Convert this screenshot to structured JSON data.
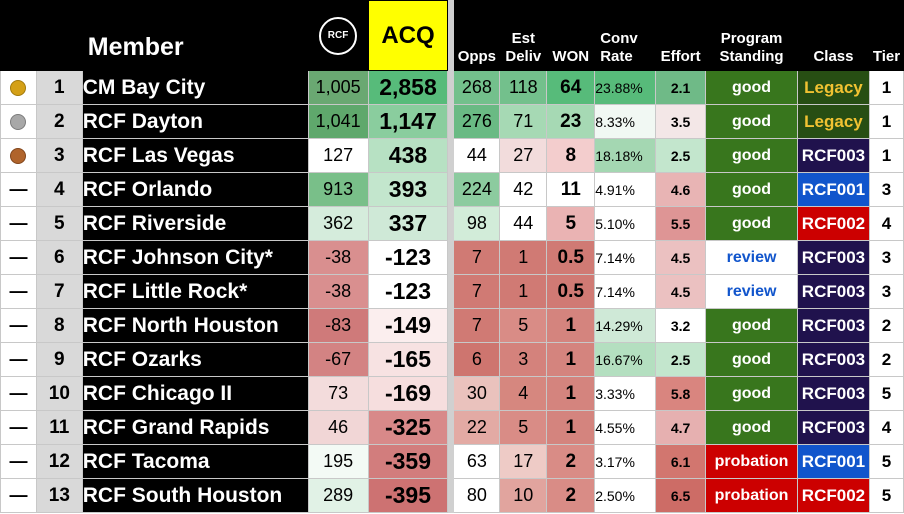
{
  "header": {
    "member": "Member",
    "logo_text": "RCF",
    "acq": "ACQ",
    "opps": "Opps",
    "est_deliv_1": "Est",
    "est_deliv_2": "Deliv",
    "won": "WON",
    "conv_rate_1": "Conv",
    "conv_rate_2": "Rate",
    "effort": "Effort",
    "standing_1": "Program",
    "standing_2": "Standing",
    "class": "Class",
    "tier": "Tier"
  },
  "colors": {
    "good_bg": "#38761d",
    "good_text": "#ffffff",
    "review_bg": "#ffffff",
    "review_text": "#1155cc",
    "probation_bg": "#cc0000",
    "probation_text": "#ffffff",
    "legacy_bg": "#274e13",
    "legacy_text": "#f1c232",
    "rcf003_bg": "#20124d",
    "rcf001_bg": "#1155cc",
    "rcf002_bg": "#cc0000"
  },
  "rows": [
    {
      "medal": "gold",
      "medal_icon": "gold-medal-icon",
      "dash": "",
      "rank": "1",
      "name": "CM Bay City",
      "score": "1,005",
      "acq": "2,858",
      "opps": "268",
      "est": "118",
      "won": "64",
      "conv": "23.88%",
      "effort": "2.1",
      "standing": "good",
      "class": "Legacy",
      "tier": "1",
      "bg": {
        "score": "#6aa872",
        "acq": "#57bb7a",
        "opps": "#73c08c",
        "est": "#73c08c",
        "won": "#57bb7a",
        "conv": "#57bb7a",
        "effort": "#6fba87"
      }
    },
    {
      "medal": "silver",
      "medal_icon": "silver-medal-icon",
      "dash": "",
      "rank": "2",
      "name": "RCF Dayton",
      "score": "1,041",
      "acq": "1,147",
      "opps": "276",
      "est": "71",
      "won": "23",
      "conv": "8.33%",
      "effort": "3.5",
      "standing": "good",
      "class": "Legacy",
      "tier": "1",
      "bg": {
        "score": "#5fa86c",
        "acq": "#8acd9e",
        "opps": "#6aba84",
        "est": "#a6d9b4",
        "won": "#a6d9b4",
        "conv": "#f1f8f3",
        "effort": "#f3e7e7"
      }
    },
    {
      "medal": "bronze",
      "medal_icon": "bronze-medal-icon",
      "dash": "",
      "rank": "3",
      "name": "RCF Las Vegas",
      "score": "127",
      "acq": "438",
      "opps": "44",
      "est": "27",
      "won": "8",
      "conv": "18.18%",
      "effort": "2.5",
      "standing": "good",
      "class": "RCF003",
      "tier": "1",
      "bg": {
        "score": "#ffffff",
        "acq": "#b7e1c3",
        "opps": "#ffffff",
        "est": "#f2dcdc",
        "won": "#f3cdcd",
        "conv": "#a4d7b2",
        "effort": "#c3e6cd"
      }
    },
    {
      "medal": "",
      "medal_icon": "",
      "dash": "—",
      "rank": "4",
      "name": "RCF Orlando",
      "score": "913",
      "acq": "393",
      "opps": "224",
      "est": "42",
      "won": "11",
      "conv": "4.91%",
      "effort": "4.6",
      "standing": "good",
      "class": "RCF001",
      "tier": "3",
      "bg": {
        "score": "#79bf89",
        "acq": "#c3e6cd",
        "opps": "#8ccb9f",
        "est": "#ffffff",
        "won": "#ffffff",
        "conv": "#ffffff",
        "effort": "#e8b4b4"
      }
    },
    {
      "medal": "",
      "medal_icon": "",
      "dash": "—",
      "rank": "5",
      "name": "RCF Riverside",
      "score": "362",
      "acq": "337",
      "opps": "98",
      "est": "44",
      "won": "5",
      "conv": "5.10%",
      "effort": "5.5",
      "standing": "good",
      "class": "RCF002",
      "tier": "4",
      "bg": {
        "score": "#d5ecdc",
        "acq": "#cfe9d7",
        "opps": "#d2ecd9",
        "est": "#ffffff",
        "won": "#eab3b3",
        "conv": "#ffffff",
        "effort": "#de9595"
      }
    },
    {
      "medal": "",
      "medal_icon": "",
      "dash": "—",
      "rank": "6",
      "name": "RCF Johnson City*",
      "score": "-38",
      "acq": "-123",
      "opps": "7",
      "est": "1",
      "won": "0.5",
      "conv": "7.14%",
      "effort": "4.5",
      "standing": "review",
      "class": "RCF003",
      "tier": "3",
      "bg": {
        "score": "#d98f8f",
        "acq": "#ffffff",
        "opps": "#d07a74",
        "est": "#d07a74",
        "won": "#d07a74",
        "conv": "#ffffff",
        "effort": "#ebc1c1"
      }
    },
    {
      "medal": "",
      "medal_icon": "",
      "dash": "—",
      "rank": "7",
      "name": "RCF Little Rock*",
      "score": "-38",
      "acq": "-123",
      "opps": "7",
      "est": "1",
      "won": "0.5",
      "conv": "7.14%",
      "effort": "4.5",
      "standing": "review",
      "class": "RCF003",
      "tier": "3",
      "bg": {
        "score": "#d98f8f",
        "acq": "#ffffff",
        "opps": "#d07a74",
        "est": "#d07a74",
        "won": "#d07a74",
        "conv": "#ffffff",
        "effort": "#ebc1c1"
      }
    },
    {
      "medal": "",
      "medal_icon": "",
      "dash": "—",
      "rank": "8",
      "name": "RCF North Houston",
      "score": "-83",
      "acq": "-149",
      "opps": "7",
      "est": "5",
      "won": "1",
      "conv": "14.29%",
      "effort": "3.2",
      "standing": "good",
      "class": "RCF003",
      "tier": "2",
      "bg": {
        "score": "#cf7a7a",
        "acq": "#fbeeee",
        "opps": "#d07a74",
        "est": "#d98c86",
        "won": "#d4847e",
        "conv": "#cfe9d7",
        "effort": "#ffffff"
      }
    },
    {
      "medal": "",
      "medal_icon": "",
      "dash": "—",
      "rank": "9",
      "name": "RCF Ozarks",
      "score": "-67",
      "acq": "-165",
      "opps": "6",
      "est": "3",
      "won": "1",
      "conv": "16.67%",
      "effort": "2.5",
      "standing": "good",
      "class": "RCF003",
      "tier": "2",
      "bg": {
        "score": "#d38383",
        "acq": "#f7e2e2",
        "opps": "#ce756f",
        "est": "#d4827c",
        "won": "#d4847e",
        "conv": "#b4dfc0",
        "effort": "#c3e6cd"
      }
    },
    {
      "medal": "",
      "medal_icon": "",
      "dash": "—",
      "rank": "10",
      "name": "RCF Chicago II",
      "score": "73",
      "acq": "-169",
      "opps": "30",
      "est": "4",
      "won": "1",
      "conv": "3.33%",
      "effort": "5.8",
      "standing": "good",
      "class": "RCF003",
      "tier": "5",
      "bg": {
        "score": "#f3dcdc",
        "acq": "#f6dede",
        "opps": "#eac2bd",
        "est": "#d6877f",
        "won": "#d4847e",
        "conv": "#ffffff",
        "effort": "#d9857f"
      }
    },
    {
      "medal": "",
      "medal_icon": "",
      "dash": "—",
      "rank": "11",
      "name": "RCF Grand Rapids",
      "score": "46",
      "acq": "-325",
      "opps": "22",
      "est": "5",
      "won": "1",
      "conv": "4.55%",
      "effort": "4.7",
      "standing": "good",
      "class": "RCF003",
      "tier": "4",
      "bg": {
        "score": "#f1d6d6",
        "acq": "#d88989",
        "opps": "#e3aaa4",
        "est": "#d98c86",
        "won": "#d4847e",
        "conv": "#ffffff",
        "effort": "#e6b0b0"
      }
    },
    {
      "medal": "",
      "medal_icon": "",
      "dash": "—",
      "rank": "12",
      "name": "RCF Tacoma",
      "score": "195",
      "acq": "-359",
      "opps": "63",
      "est": "17",
      "won": "2",
      "conv": "3.17%",
      "effort": "6.1",
      "standing": "probation",
      "class": "RCF001",
      "tier": "5",
      "bg": {
        "score": "#f3faf5",
        "acq": "#d27d7d",
        "opps": "#ffffff",
        "est": "#eecbc6",
        "won": "#d98c86",
        "conv": "#ffffff",
        "effort": "#d2766f"
      }
    },
    {
      "medal": "",
      "medal_icon": "",
      "dash": "—",
      "rank": "13",
      "name": "RCF South Houston",
      "score": "289",
      "acq": "-395",
      "opps": "80",
      "est": "10",
      "won": "2",
      "conv": "2.50%",
      "effort": "6.5",
      "standing": "probation",
      "class": "RCF002",
      "tier": "5",
      "bg": {
        "score": "#e1f2e6",
        "acq": "#cd7272",
        "opps": "#ffffff",
        "est": "#e1a49e",
        "won": "#d98c86",
        "conv": "#ffffff",
        "effort": "#cd6c66"
      }
    }
  ]
}
